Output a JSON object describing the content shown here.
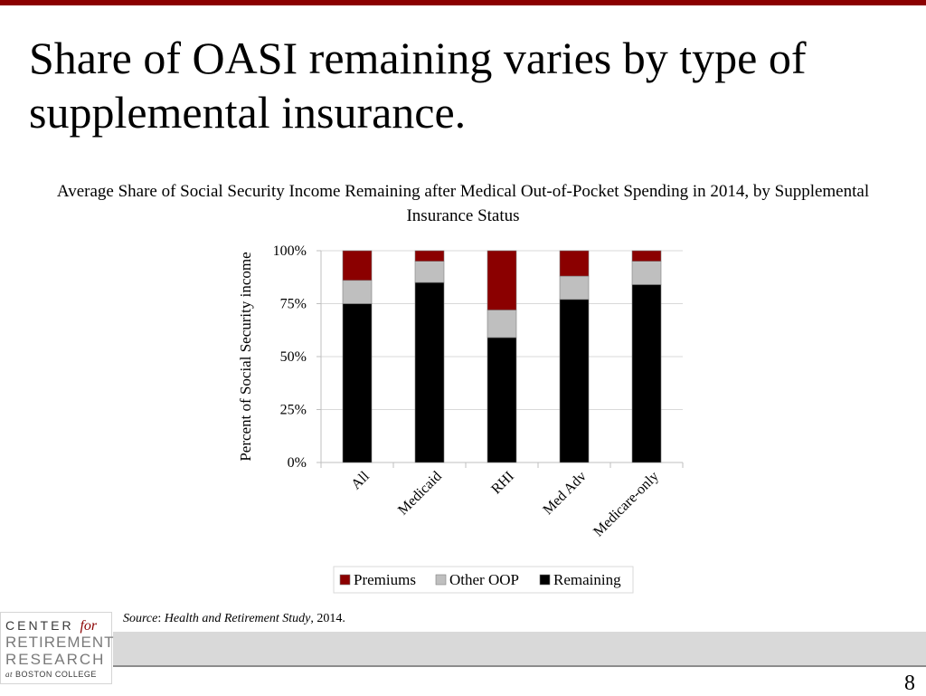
{
  "slide": {
    "title": "Share of OASI remaining varies by type of supplemental insurance.",
    "page_number": "8",
    "accent_color": "#8b0000"
  },
  "source": {
    "label": "Source",
    "study": "Health and Retirement Study",
    "year": ", 2014."
  },
  "logo": {
    "line1": "CENTER",
    "line1_for": "for",
    "line2": "RETIREMENT",
    "line3": "RESEARCH",
    "line4_at": "at",
    "line4": "BOSTON COLLEGE"
  },
  "chart_data": {
    "type": "bar",
    "stacked": true,
    "title": "Average Share of Social Security Income Remaining after Medical Out-of-Pocket Spending in 2014, by Supplemental Insurance Status",
    "xlabel": "",
    "ylabel": "Percent of Social Security income",
    "ylim": [
      0,
      100
    ],
    "yticks": [
      "0%",
      "25%",
      "50%",
      "75%",
      "100%"
    ],
    "grid": true,
    "legend_position": "bottom",
    "categories": [
      "All",
      "Medicaid",
      "RHI",
      "Med Adv",
      "Medicare-only"
    ],
    "series": [
      {
        "name": "Remaining",
        "color": "#000000",
        "values": [
          75,
          85,
          59,
          77,
          84
        ]
      },
      {
        "name": "Other OOP",
        "color": "#bfbfbf",
        "values": [
          11,
          10,
          13,
          11,
          11
        ]
      },
      {
        "name": "Premiums",
        "color": "#8b0000",
        "values": [
          14,
          5,
          28,
          12,
          5
        ]
      }
    ],
    "legend_order": [
      "Premiums",
      "Other OOP",
      "Remaining"
    ]
  }
}
